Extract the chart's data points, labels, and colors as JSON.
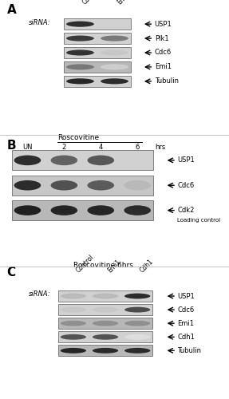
{
  "fig_width": 2.87,
  "fig_height": 5.0,
  "dpi": 100,
  "bg_color": "#ffffff",
  "panels": {
    "A": {
      "blots": [
        {
          "name": "USP1",
          "bands": [
            0.88,
            0.18
          ],
          "bg": 0.82
        },
        {
          "name": "Plk1",
          "bands": [
            0.82,
            0.55
          ],
          "bg": 0.82
        },
        {
          "name": "Cdc6",
          "bands": [
            0.85,
            0.22
          ],
          "bg": 0.82
        },
        {
          "name": "Emi1",
          "bands": [
            0.55,
            0.18
          ],
          "bg": 0.72
        },
        {
          "name": "Tubulin",
          "bands": [
            0.9,
            0.88
          ],
          "bg": 0.82
        }
      ]
    },
    "B": {
      "blots": [
        {
          "name": "USP1",
          "bands": [
            0.88,
            0.65,
            0.7,
            0.18
          ],
          "bg": 0.82
        },
        {
          "name": "Cdc6",
          "bands": [
            0.88,
            0.72,
            0.68,
            0.28
          ],
          "bg": 0.78
        },
        {
          "name": "Cdk2",
          "bands": [
            0.92,
            0.9,
            0.9,
            0.88
          ],
          "bg": 0.72
        }
      ]
    },
    "C": {
      "blots": [
        {
          "name": "USP1",
          "bands": [
            0.28,
            0.28,
            0.88
          ],
          "bg": 0.82
        },
        {
          "name": "Cdc6",
          "bands": [
            0.22,
            0.22,
            0.75
          ],
          "bg": 0.82
        },
        {
          "name": "Emi1",
          "bands": [
            0.45,
            0.45,
            0.45
          ],
          "bg": 0.72
        },
        {
          "name": "Cdh1",
          "bands": [
            0.72,
            0.72,
            0.12
          ],
          "bg": 0.82
        },
        {
          "name": "Tubulin",
          "bands": [
            0.9,
            0.88,
            0.88
          ],
          "bg": 0.72
        }
      ]
    }
  }
}
